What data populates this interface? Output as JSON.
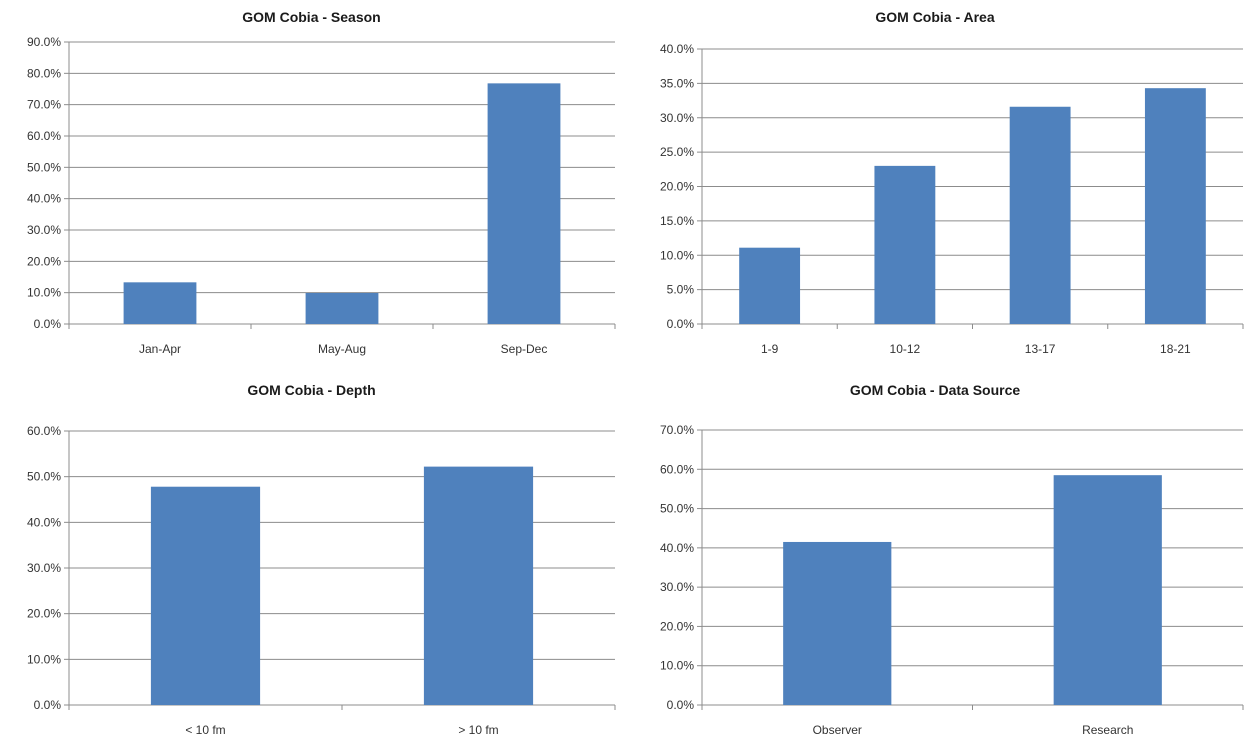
{
  "chart_data": [
    {
      "id": "season",
      "type": "bar",
      "title": "GOM Cobia - Season",
      "categories": [
        "Jan-Apr",
        "May-Aug",
        "Sep-Dec"
      ],
      "values": [
        13.3,
        9.9,
        76.8
      ],
      "ylim": [
        0,
        90
      ],
      "ytick_step": 10,
      "yticks": [
        "0.0%",
        "10.0%",
        "20.0%",
        "30.0%",
        "40.0%",
        "50.0%",
        "60.0%",
        "70.0%",
        "80.0%",
        "90.0%"
      ],
      "grid": true,
      "bar_color": "#4f81bd"
    },
    {
      "id": "area",
      "type": "bar",
      "title": "GOM Cobia - Area",
      "categories": [
        "1-9",
        "10-12",
        "13-17",
        "18-21"
      ],
      "values": [
        11.1,
        23.0,
        31.6,
        34.3
      ],
      "ylim": [
        0,
        40
      ],
      "ytick_step": 5,
      "yticks": [
        "0.0%",
        "5.0%",
        "10.0%",
        "15.0%",
        "20.0%",
        "25.0%",
        "30.0%",
        "35.0%",
        "40.0%"
      ],
      "grid": true,
      "bar_color": "#4f81bd"
    },
    {
      "id": "depth",
      "type": "bar",
      "title": "GOM Cobia - Depth",
      "categories": [
        "< 10 fm",
        "> 10 fm"
      ],
      "values": [
        47.8,
        52.2
      ],
      "ylim": [
        0,
        60
      ],
      "ytick_step": 10,
      "yticks": [
        "0.0%",
        "10.0%",
        "20.0%",
        "30.0%",
        "40.0%",
        "50.0%",
        "60.0%"
      ],
      "grid": true,
      "bar_color": "#4f81bd"
    },
    {
      "id": "source",
      "type": "bar",
      "title": "GOM Cobia - Data Source",
      "categories": [
        "Observer",
        "Research"
      ],
      "values": [
        41.5,
        58.5
      ],
      "ylim": [
        0,
        70
      ],
      "ytick_step": 10,
      "yticks": [
        "0.0%",
        "10.0%",
        "20.0%",
        "30.0%",
        "40.0%",
        "50.0%",
        "60.0%",
        "70.0%"
      ],
      "grid": true,
      "bar_color": "#4f81bd"
    }
  ]
}
